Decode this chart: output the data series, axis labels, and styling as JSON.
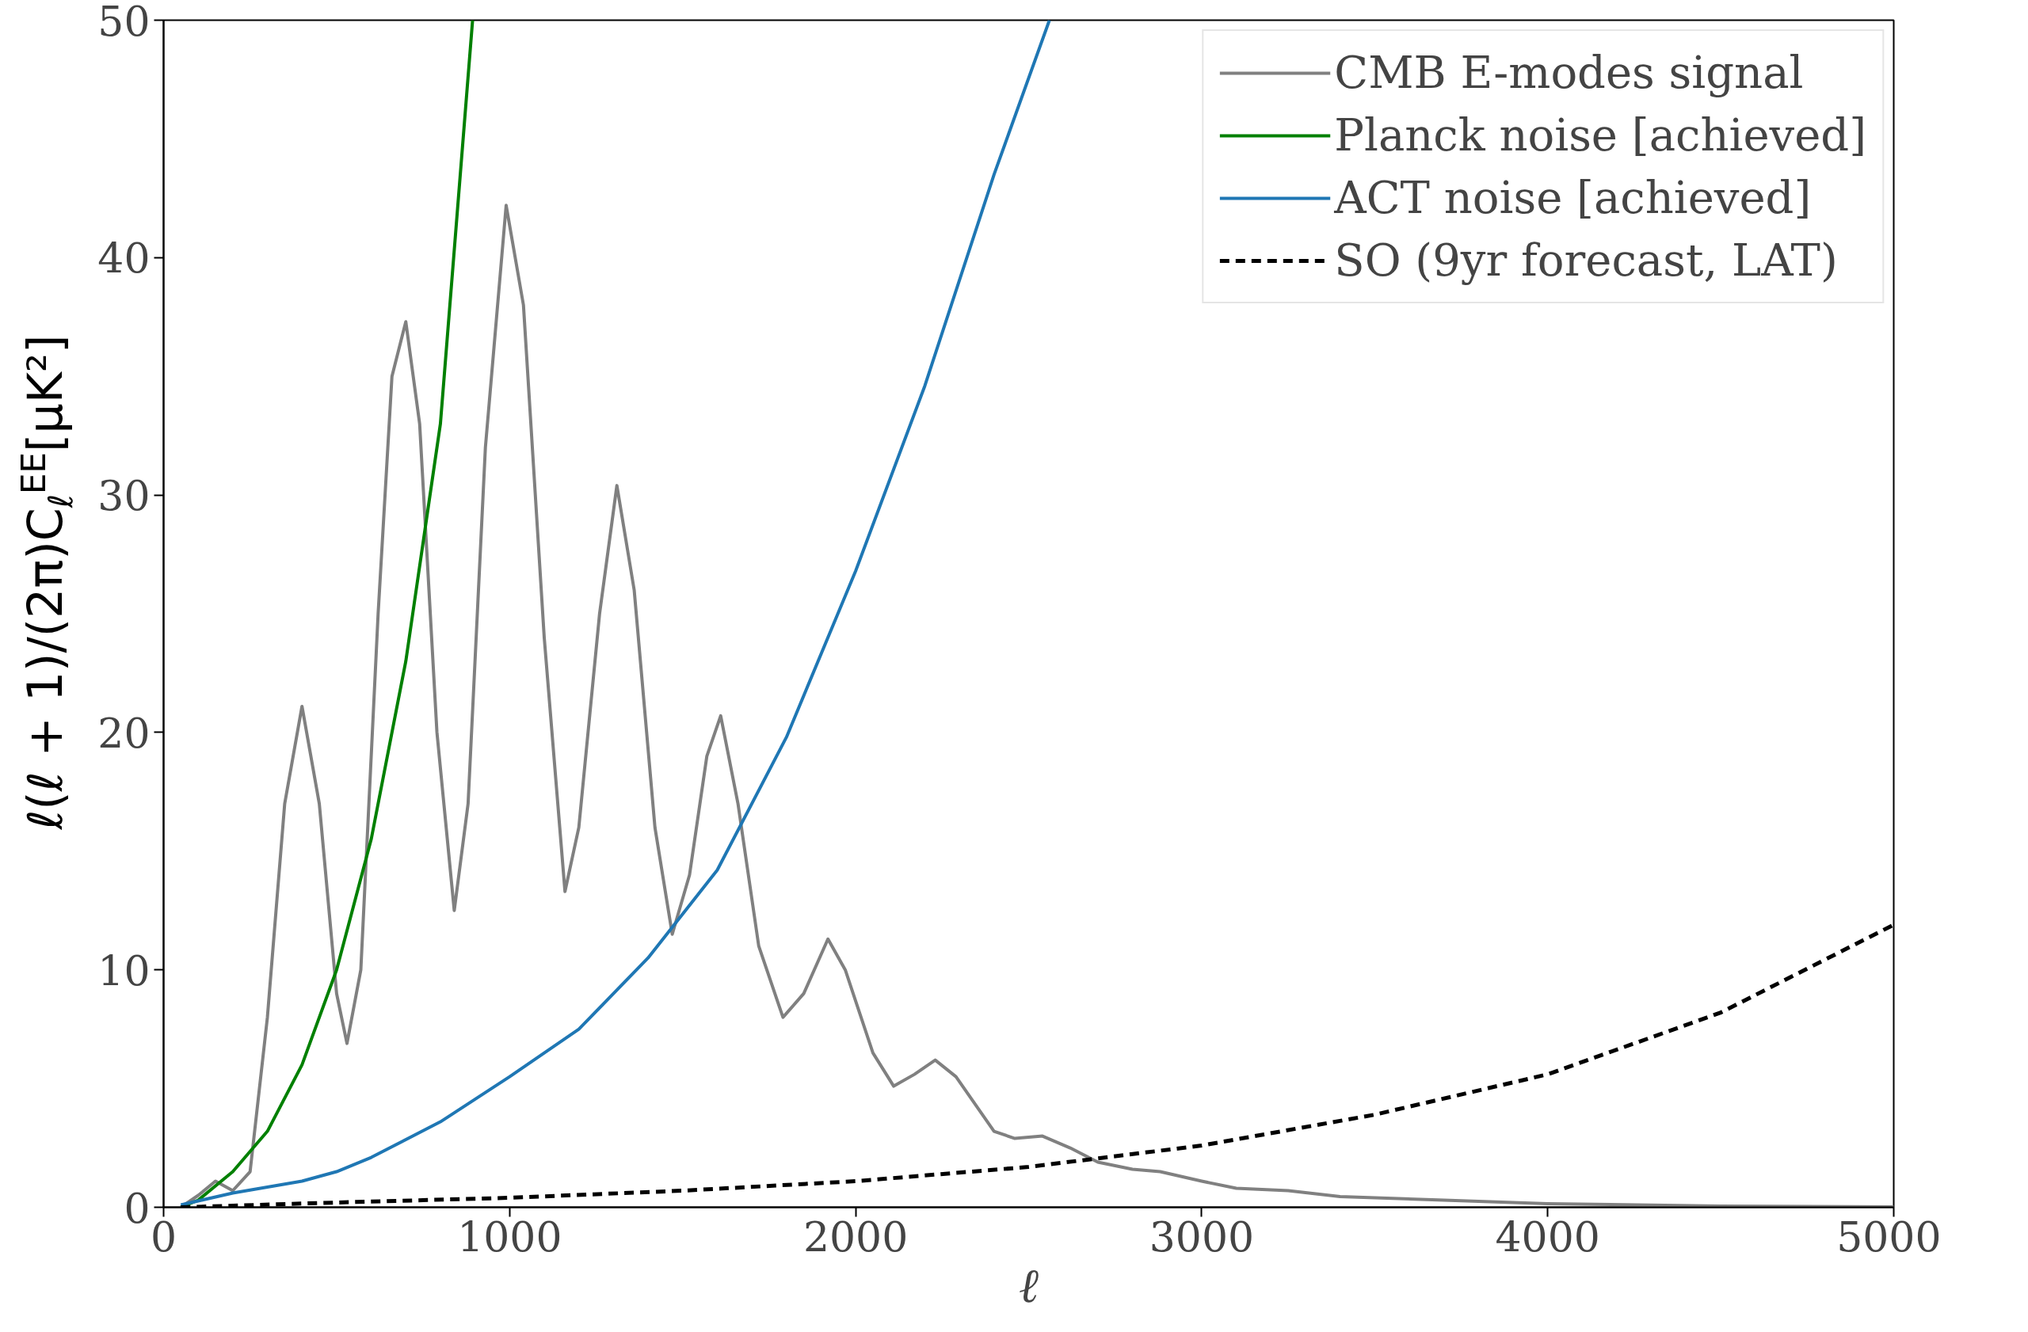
{
  "chart_data": {
    "type": "line",
    "xlabel": "ℓ",
    "ylabel": "ℓ(ℓ + 1)/(2π)C$_{ℓ}$$^{EE}$[μK²]",
    "xlim": [
      0,
      5000
    ],
    "ylim": [
      0,
      50
    ],
    "xticks": [
      0,
      1000,
      2000,
      3000,
      4000,
      5000
    ],
    "yticks": [
      0,
      10,
      20,
      30,
      40,
      50
    ],
    "grid": false,
    "legend": "top right",
    "marker": "none",
    "series": [
      {
        "name": "CMB E-modes signal",
        "color": "#808080",
        "line_style": "solid",
        "x": [
          50,
          100,
          150,
          200,
          250,
          300,
          350,
          400,
          450,
          500,
          530,
          570,
          620,
          660,
          700,
          740,
          790,
          840,
          880,
          930,
          990,
          1040,
          1100,
          1160,
          1200,
          1260,
          1310,
          1360,
          1420,
          1470,
          1520,
          1570,
          1610,
          1660,
          1720,
          1790,
          1850,
          1920,
          1970,
          2050,
          2110,
          2170,
          2230,
          2290,
          2400,
          2460,
          2540,
          2620,
          2700,
          2800,
          2880,
          3000,
          3100,
          3250,
          3400,
          3700,
          4000,
          4500,
          5000
        ],
        "values": [
          0,
          0.5,
          1.1,
          0.7,
          1.5,
          8,
          17,
          21.1,
          17,
          9,
          6.9,
          10,
          25,
          35,
          37.3,
          33,
          20,
          12.5,
          17,
          32,
          42.2,
          38,
          24,
          13.3,
          16,
          25,
          30.4,
          26,
          16,
          11.5,
          14,
          19,
          20.7,
          17,
          11,
          8,
          9,
          11.3,
          10,
          6.5,
          5.1,
          5.6,
          6.2,
          5.5,
          3.2,
          2.9,
          3.0,
          2.5,
          1.9,
          1.6,
          1.5,
          1.1,
          0.8,
          0.7,
          0.45,
          0.3,
          0.15,
          0.05,
          0.02
        ]
      },
      {
        "name": "Planck noise [achieved]",
        "color": "#008000",
        "line_style": "solid",
        "x": [
          50,
          100,
          200,
          300,
          400,
          500,
          600,
          700,
          800,
          893
        ],
        "values": [
          0,
          0.3,
          1.5,
          3.2,
          6,
          10,
          15.5,
          23,
          33,
          50
        ]
      },
      {
        "name": "ACT noise [achieved]",
        "color": "#1f77b4",
        "line_style": "solid",
        "x": [
          50,
          200,
          400,
          500,
          600,
          800,
          1000,
          1200,
          1400,
          1600,
          1800,
          2000,
          2200,
          2400,
          2560
        ],
        "values": [
          0.1,
          0.6,
          1.1,
          1.5,
          2.1,
          3.6,
          5.5,
          7.5,
          10.5,
          14.2,
          19.8,
          26.8,
          34.6,
          43.5,
          50
        ]
      },
      {
        "name": "SO (9yr forecast, LAT)",
        "color": "#000000",
        "line_style": "dashed",
        "x": [
          50,
          500,
          1000,
          1500,
          2000,
          2500,
          3000,
          3500,
          4000,
          4500,
          5000
        ],
        "values": [
          0,
          0.2,
          0.4,
          0.7,
          1.1,
          1.7,
          2.6,
          3.9,
          5.6,
          8.2,
          11.9
        ]
      }
    ]
  }
}
